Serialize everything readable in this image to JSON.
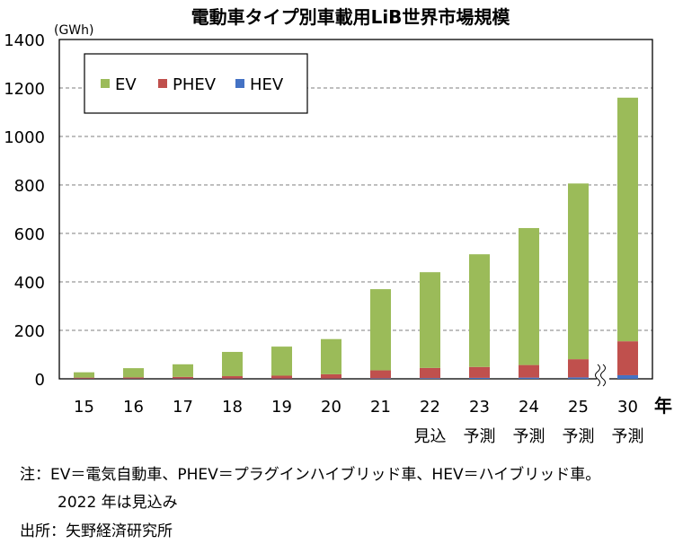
{
  "chart_data": {
    "type": "bar",
    "stacked": true,
    "title": "電動車タイプ別車載用LiB世界市場規模",
    "unit": "(GWh)",
    "xunit": "年",
    "ylim": [
      0,
      1400
    ],
    "yticks": [
      0,
      200,
      400,
      600,
      800,
      1000,
      1200,
      1400
    ],
    "ytick_labels": [
      "0",
      "200",
      "400",
      "600",
      "800",
      "1000",
      "1200",
      "1400"
    ],
    "grid": true,
    "legend_position": "top-left",
    "categories": [
      "15",
      "16",
      "17",
      "18",
      "19",
      "20",
      "21",
      "22",
      "23",
      "24",
      "25",
      "30"
    ],
    "category_sublabels": [
      "",
      "",
      "",
      "",
      "",
      "",
      "",
      "見込",
      "予測",
      "予測",
      "予測",
      "予測"
    ],
    "axis_break_before": "30",
    "series": [
      {
        "name": "HEV",
        "color": "#4472c4",
        "values": [
          1,
          1,
          1,
          1,
          1,
          1,
          2,
          3,
          4,
          5,
          6,
          15
        ]
      },
      {
        "name": "PHEV",
        "color": "#c0504d",
        "values": [
          4,
          5,
          7,
          10,
          12,
          18,
          33,
          42,
          45,
          52,
          75,
          140
        ]
      },
      {
        "name": "EV",
        "color": "#9bbb59",
        "values": [
          22,
          38,
          52,
          100,
          120,
          145,
          335,
          395,
          465,
          565,
          725,
          1005
        ]
      }
    ]
  },
  "legend_labels": [
    "EV",
    "PHEV",
    "HEV"
  ],
  "notes": {
    "line1": "注：EV＝電気自動車、PHEV＝プラグインハイブリッド車、HEV＝ハイブリッド車。",
    "line2": "2022 年は見込み",
    "source": "出所：矢野経済研究所"
  }
}
